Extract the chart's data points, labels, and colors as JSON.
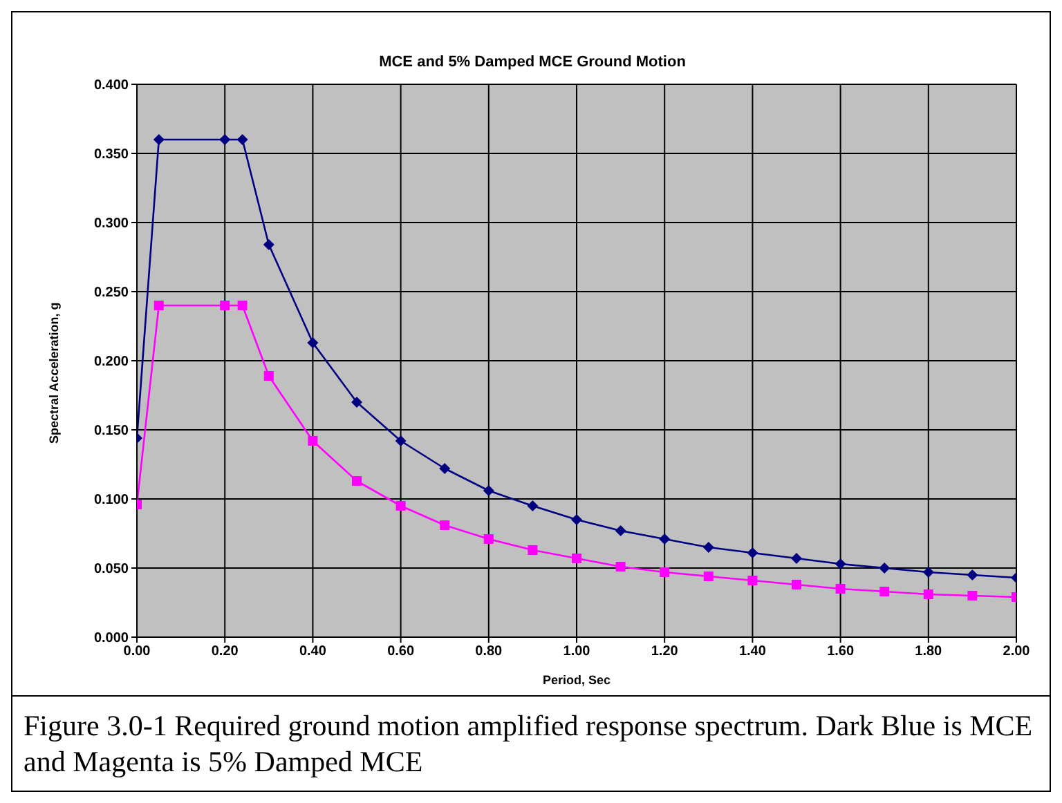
{
  "chart_data": {
    "type": "line",
    "title": "MCE and 5% Damped MCE Ground Motion",
    "xlabel": "Period, Sec",
    "ylabel": "Spectral Acceleration, g",
    "x": [
      0,
      0.05,
      0.2,
      0.24,
      0.3,
      0.4,
      0.5,
      0.6,
      0.7,
      0.8,
      0.9,
      1.0,
      1.1,
      1.2,
      1.3,
      1.4,
      1.5,
      1.6,
      1.7,
      1.8,
      1.9,
      2.0
    ],
    "series": [
      {
        "color": "#000080",
        "marker": "diamond",
        "values": [
          0.144,
          0.36,
          0.36,
          0.36,
          0.284,
          0.213,
          0.17,
          0.142,
          0.122,
          0.106,
          0.095,
          0.085,
          0.077,
          0.071,
          0.065,
          0.061,
          0.057,
          0.053,
          0.05,
          0.047,
          0.045,
          0.043
        ]
      },
      {
        "color": "#ff00ff",
        "marker": "square",
        "values": [
          0.096,
          0.24,
          0.24,
          0.24,
          0.189,
          0.142,
          0.113,
          0.095,
          0.081,
          0.071,
          0.063,
          0.057,
          0.051,
          0.047,
          0.044,
          0.041,
          0.038,
          0.035,
          0.033,
          0.031,
          0.03,
          0.029
        ]
      }
    ],
    "xlim": [
      0,
      2
    ],
    "xticks": [
      {
        "value": 0,
        "label": "0.00"
      },
      {
        "value": 0.2,
        "label": "0.20"
      },
      {
        "value": 0.4,
        "label": "0.40"
      },
      {
        "value": 0.6,
        "label": "0.60"
      },
      {
        "value": 0.8,
        "label": "0.80"
      },
      {
        "value": 1,
        "label": "1.00"
      },
      {
        "value": 1.2,
        "label": "1.20"
      },
      {
        "value": 1.4,
        "label": "1.40"
      },
      {
        "value": 1.6,
        "label": "1.60"
      },
      {
        "value": 1.8,
        "label": "1.80"
      },
      {
        "value": 2,
        "label": "2.00"
      }
    ],
    "ylim": [
      0,
      0.4
    ],
    "yticks": [
      {
        "value": 0,
        "label": "0.000"
      },
      {
        "value": 0.05,
        "label": "0.050"
      },
      {
        "value": 0.1,
        "label": "0.100"
      },
      {
        "value": 0.15,
        "label": "0.150"
      },
      {
        "value": 0.2,
        "label": "0.200"
      },
      {
        "value": 0.25,
        "label": "0.250"
      },
      {
        "value": 0.3,
        "label": "0.300"
      },
      {
        "value": 0.35,
        "label": "0.350"
      },
      {
        "value": 0.4,
        "label": "0.400"
      }
    ],
    "grid": true,
    "legend": false,
    "line_style": "solid",
    "annotations": [
      "Figure 3.0-1 Required ground motion amplified response spectrum. Dark Blue is MCE and Magenta is 5% Damped MCE"
    ]
  }
}
